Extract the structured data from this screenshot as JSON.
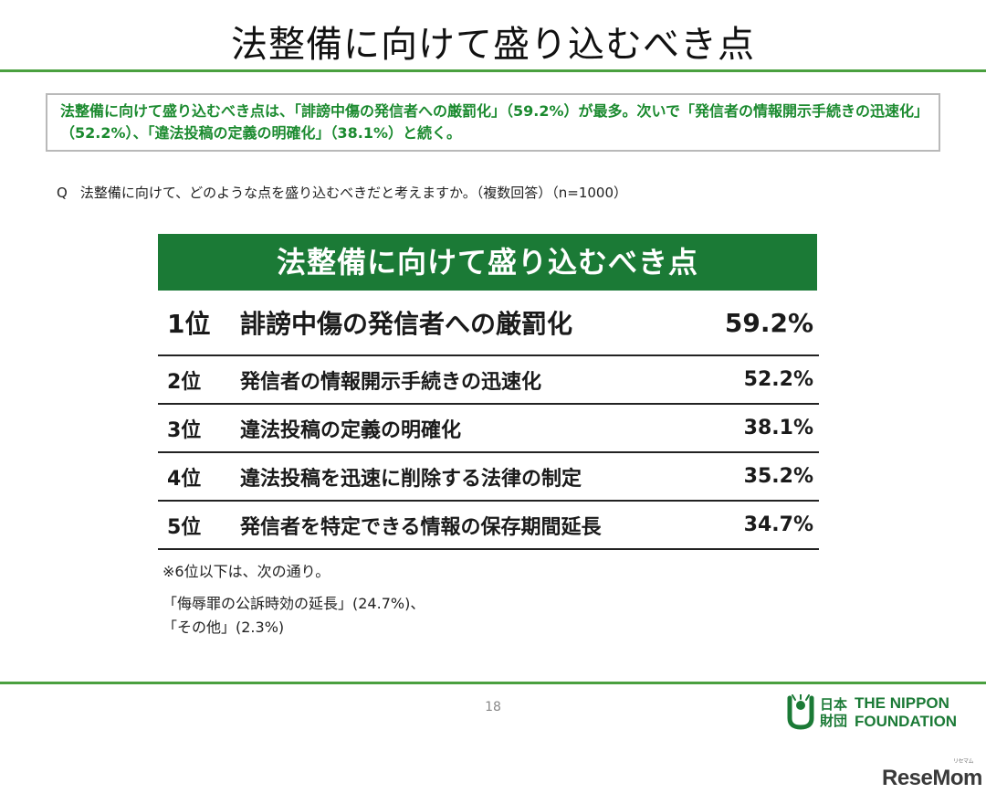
{
  "slide": {
    "title": "法整備に向けて盛り込むべき点",
    "summary": "法整備に向けて盛り込むべき点は、「誹謗中傷の発信者への厳罰化」（59.2%）が最多。次いで「発信者の情報開示手続きの迅速化」（52.2%）、「違法投稿の定義の明確化」（38.1%）と続く。",
    "question_mark": "Q",
    "question_text": "法整備に向けて、どのような点を盛り込むべきだと考えますか。（複数回答）（n=1000）",
    "ranking_header": "法整備に向けて盛り込むべき点",
    "ranking": [
      {
        "rank": "1位",
        "label": "誹謗中傷の発信者への厳罰化",
        "percent": "59.2%"
      },
      {
        "rank": "2位",
        "label": "発信者の情報開示手続きの迅速化",
        "percent": "52.2%"
      },
      {
        "rank": "3位",
        "label": "違法投稿の定義の明確化",
        "percent": "38.1%"
      },
      {
        "rank": "4位",
        "label": "違法投稿を迅速に削除する法律の制定",
        "percent": "35.2%"
      },
      {
        "rank": "5位",
        "label": "発信者を特定できる情報の保存期間延長",
        "percent": "34.7%"
      }
    ],
    "note": "※6位以下は、次の通り。",
    "others_line1": "「侮辱罪の公訴時効の延長」(24.7%)、",
    "others_line2": "「その他」(2.3%)",
    "page_number": "18"
  },
  "logo": {
    "jp_line1": "日本",
    "jp_line2": "財団",
    "en_line1": "THE NIPPON",
    "en_line2": "FOUNDATION",
    "icon": "nippon-foundation-mark-icon",
    "color": "#1b7a36"
  },
  "watermark": {
    "text": "ReseMom",
    "kana": "リセマム"
  },
  "colors": {
    "accent_green": "#1b7a36",
    "rule_green": "#4aa03f",
    "summary_text": "#1b8a2f"
  }
}
